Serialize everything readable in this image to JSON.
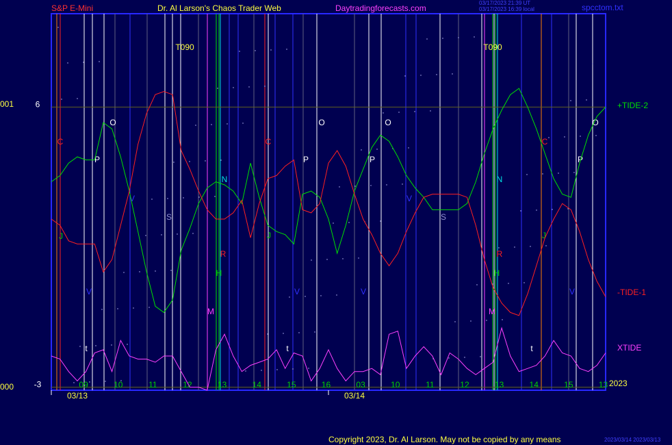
{
  "chart_data": {
    "type": "line",
    "subtitle": "S&P E-Mini",
    "title": "Dr. Al Larson's Chaos Trader Web",
    "source": "Daytradingforecasts.com",
    "file": "spcctom.txt",
    "timestamps": [
      "03/17/2023 21:39 UT",
      "03/17/2023 16:39 local"
    ],
    "copyright": "Copyright 2023, Dr. Al Larson. May not be copied by any means",
    "footer_stamp": "2023/03/14 2023/03/13",
    "left_labels": [
      "001",
      "000"
    ],
    "year": "2023",
    "date_labels": [
      "03/13",
      "03/14"
    ],
    "annotations": [
      "C",
      "O",
      "P",
      "J",
      "V",
      "t",
      "V",
      "S",
      "T090",
      "N",
      "R",
      "H",
      "M",
      "C",
      "J",
      "P",
      "O",
      "V",
      "t",
      "V",
      "P",
      "O",
      "V",
      "S",
      "T090",
      "N",
      "R",
      "H",
      "M",
      "C",
      "J",
      "P",
      "O",
      "V",
      "t"
    ],
    "xlim": [
      0,
      16
    ],
    "xticks": [
      {
        "value": 0.93,
        "label": "09"
      },
      {
        "value": 1.93,
        "label": "10"
      },
      {
        "value": 2.93,
        "label": "11"
      },
      {
        "value": 3.93,
        "label": "12"
      },
      {
        "value": 4.93,
        "label": "13"
      },
      {
        "value": 5.93,
        "label": "14"
      },
      {
        "value": 6.93,
        "label": "15"
      },
      {
        "value": 7.93,
        "label": "16"
      },
      {
        "value": 8.93,
        "label": "03"
      },
      {
        "value": 9.93,
        "label": "10"
      },
      {
        "value": 10.93,
        "label": "11"
      },
      {
        "value": 11.93,
        "label": "12"
      },
      {
        "value": 12.93,
        "label": "13"
      },
      {
        "value": 13.93,
        "label": "14"
      },
      {
        "value": 14.93,
        "label": "15"
      },
      {
        "value": 15.93,
        "label": "13"
      }
    ],
    "ylim": [
      -3.1,
      9.0
    ],
    "yticks": [
      6,
      -3
    ],
    "grid": true,
    "x": [
      0,
      0.25,
      0.5,
      0.75,
      1,
      1.25,
      1.5,
      1.75,
      2,
      2.25,
      2.5,
      2.75,
      3,
      3.25,
      3.5,
      3.75,
      4,
      4.25,
      4.5,
      4.75,
      5,
      5.25,
      5.5,
      5.75,
      6,
      6.25,
      6.5,
      6.75,
      7,
      7.25,
      7.5,
      7.75,
      8,
      8.25,
      8.5,
      8.75,
      9,
      9.25,
      9.5,
      9.75,
      10,
      10.25,
      10.5,
      10.75,
      11,
      11.25,
      11.5,
      11.75,
      12,
      12.25,
      12.5,
      12.75,
      13,
      13.25,
      13.5,
      13.75,
      14,
      14.25,
      14.5,
      14.75,
      15,
      15.25,
      15.5,
      15.75,
      16
    ],
    "series": [
      {
        "name": "+TIDE-2",
        "color": "#00e000",
        "values": [
          3.6,
          3.8,
          4.2,
          4.4,
          4.3,
          4.3,
          5.5,
          5.3,
          4.4,
          3.3,
          2.0,
          0.7,
          -0.4,
          -0.6,
          -0.2,
          1.4,
          2.1,
          2.9,
          3.4,
          3.6,
          3.5,
          3.3,
          2.9,
          4.2,
          3.1,
          2.2,
          2.0,
          1.9,
          1.6,
          3.2,
          3.3,
          3.1,
          2.4,
          1.3,
          2.2,
          3.3,
          4.0,
          4.7,
          5.1,
          4.9,
          4.4,
          3.8,
          3.4,
          3.1,
          2.7,
          2.7,
          2.7,
          2.7,
          2.9,
          3.6,
          4.5,
          5.3,
          5.9,
          6.4,
          6.6,
          6.0,
          5.3,
          4.5,
          3.7,
          3.2,
          3.1,
          4.2,
          5.1,
          5.7,
          6.0
        ]
      },
      {
        "name": "-TIDE-1",
        "color": "#ff2020",
        "values": [
          2.4,
          2.2,
          1.7,
          1.6,
          1.6,
          1.6,
          0.7,
          1.1,
          2.2,
          3.3,
          4.8,
          5.8,
          6.4,
          6.5,
          6.4,
          4.6,
          4.0,
          3.3,
          2.7,
          2.4,
          2.4,
          2.6,
          3.0,
          1.8,
          2.9,
          3.7,
          3.8,
          4.1,
          4.3,
          2.7,
          2.6,
          2.9,
          4.2,
          4.6,
          4.1,
          3.2,
          2.4,
          1.9,
          1.3,
          0.9,
          1.3,
          2.0,
          2.6,
          3.1,
          3.2,
          3.2,
          3.2,
          3.2,
          3.1,
          2.2,
          1.1,
          0.2,
          -0.3,
          -0.6,
          -0.7,
          0.0,
          0.9,
          1.8,
          2.4,
          2.9,
          2.7,
          2.0,
          1.1,
          0.4,
          -0.1
        ]
      },
      {
        "name": "XTIDE",
        "color": "#ff40ff",
        "values": [
          -2.0,
          -2.1,
          -2.5,
          -2.8,
          -2.5,
          -1.9,
          -1.8,
          -2.5,
          -1.5,
          -2.0,
          -2.1,
          -2.1,
          -2.2,
          -2.0,
          -2.0,
          -2.5,
          -3.0,
          -3.0,
          -3.1,
          -1.8,
          -1.3,
          -2.0,
          -2.5,
          -2.3,
          -2.2,
          -2.1,
          -1.8,
          -2.4,
          -1.9,
          -2.0,
          -2.8,
          -2.4,
          -1.8,
          -2.4,
          -2.8,
          -2.5,
          -2.5,
          -2.4,
          -2.6,
          -1.3,
          -1.2,
          -2.4,
          -2.0,
          -1.7,
          -2.0,
          -2.6,
          -1.9,
          -2.1,
          -2.4,
          -2.6,
          -2.4,
          -2.2,
          -1.1,
          -2.0,
          -2.5,
          -2.4,
          -2.3,
          -2.0,
          -1.5,
          -1.9,
          -2.0,
          -2.4,
          -2.5,
          -2.3,
          -1.9
        ]
      }
    ]
  }
}
